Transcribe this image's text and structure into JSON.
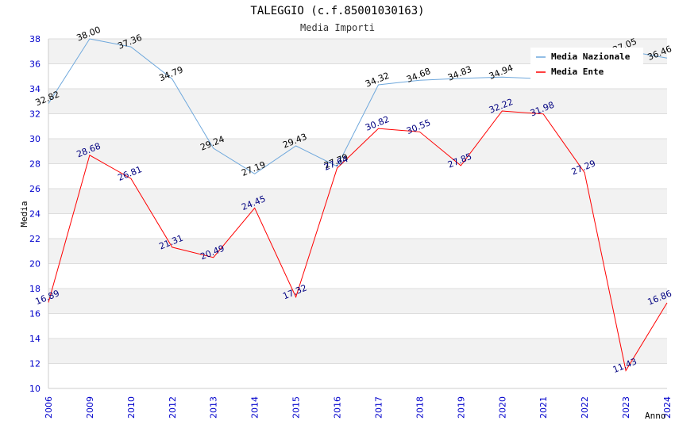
{
  "chart_data": {
    "type": "line",
    "title": "TALEGGIO (c.f.85001030163)",
    "subtitle": "Media Importi",
    "xlabel": "Anno",
    "ylabel": "Media",
    "ylim": [
      10,
      38
    ],
    "yticks": [
      10,
      12,
      14,
      16,
      18,
      20,
      22,
      24,
      26,
      28,
      30,
      32,
      34,
      36,
      38
    ],
    "categories": [
      "2006",
      "2009",
      "2010",
      "2012",
      "2013",
      "2014",
      "2015",
      "2016",
      "2017",
      "2018",
      "2019",
      "2020",
      "2021",
      "2022",
      "2023",
      "2024"
    ],
    "series": [
      {
        "name": "Media Nazionale",
        "color": "#6fa8dc",
        "values": [
          32.82,
          38.0,
          37.36,
          34.79,
          29.24,
          27.19,
          29.43,
          27.79,
          34.32,
          34.68,
          34.83,
          34.94,
          34.8,
          null,
          37.05,
          36.46
        ],
        "labels": [
          "32.82",
          "38.00",
          "37.36",
          "34.79",
          "29.24",
          "27.19",
          "29.43",
          "27.79",
          "34.32",
          "34.68",
          "34.83",
          "34.94",
          "",
          "",
          "37.05",
          "36.46"
        ]
      },
      {
        "name": "Media Ente",
        "color": "#ff0000",
        "values": [
          16.89,
          28.68,
          26.81,
          21.31,
          20.49,
          24.45,
          17.32,
          27.64,
          30.82,
          30.55,
          27.85,
          32.22,
          31.98,
          27.29,
          11.43,
          16.86
        ],
        "labels": [
          "16.89",
          "28.68",
          "26.81",
          "21.31",
          "20.49",
          "24.45",
          "17.32",
          "27.64",
          "30.82",
          "30.55",
          "27.85",
          "32.22",
          "31.98",
          "27.29",
          "11.43",
          "16.86"
        ]
      }
    ],
    "legend": "top-right",
    "grid": true
  }
}
